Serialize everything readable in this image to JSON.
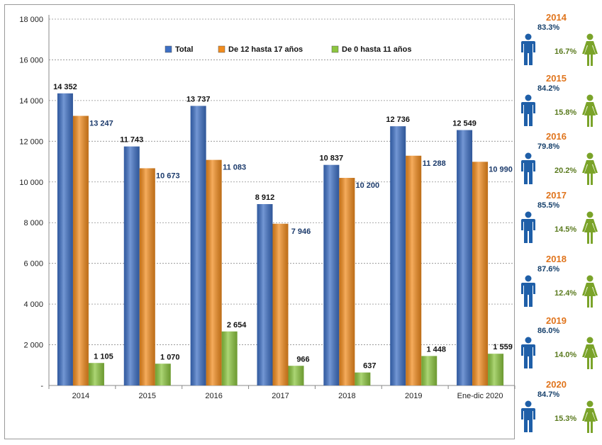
{
  "chart_data": {
    "type": "bar",
    "categories": [
      "2014",
      "2015",
      "2016",
      "2017",
      "2018",
      "2019",
      "Ene-dic 2020"
    ],
    "series": [
      {
        "name": "Total",
        "color": "#3d6fc4",
        "values": [
          14352,
          11743,
          13737,
          8912,
          10837,
          12736,
          12549
        ],
        "labels": [
          "14 352",
          "11 743",
          "13 737",
          "8 912",
          "10 837",
          "12 736",
          "12 549"
        ]
      },
      {
        "name": "De 12 hasta 17 años",
        "color": "#f28c1e",
        "values": [
          13247,
          10673,
          11083,
          7946,
          10200,
          11288,
          10990
        ],
        "labels": [
          "13 247",
          "10 673",
          "11 083",
          "7 946",
          "10 200",
          "11 288",
          "10 990"
        ]
      },
      {
        "name": "De 0 hasta 11 años",
        "color": "#8cc63f",
        "values": [
          1105,
          1070,
          2654,
          966,
          637,
          1448,
          1559
        ],
        "labels": [
          "1 105",
          "1 070",
          "2 654",
          "966",
          "637",
          "1 448",
          "1 559"
        ]
      }
    ],
    "yticks": [
      0,
      2000,
      4000,
      6000,
      8000,
      10000,
      12000,
      14000,
      16000,
      18000
    ],
    "ytick_labels": [
      "-",
      "2 000",
      "4 000",
      "6 000",
      "8 000",
      "10 000",
      "12 000",
      "14 000",
      "16 000",
      "18 000"
    ],
    "ylim": [
      0,
      18000
    ],
    "grid": true,
    "legend_position": "top-center",
    "title": "",
    "xlabel": "",
    "ylabel": ""
  },
  "sidebar": {
    "male_color": "#1f5fa8",
    "female_color": "#7aa329",
    "year_color": "#e0741c",
    "items": [
      {
        "year": "2014",
        "male": "83.3%",
        "female": "16.7%"
      },
      {
        "year": "2015",
        "male": "84.2%",
        "female": "15.8%"
      },
      {
        "year": "2016",
        "male": "79.8%",
        "female": "20.2%"
      },
      {
        "year": "2017",
        "male": "85.5%",
        "female": "14.5%"
      },
      {
        "year": "2018",
        "male": "87.6%",
        "female": "12.4%"
      },
      {
        "year": "2019",
        "male": "86.0%",
        "female": "14.0%"
      },
      {
        "year": "2020",
        "male": "84.7%",
        "female": "15.3%"
      }
    ]
  }
}
